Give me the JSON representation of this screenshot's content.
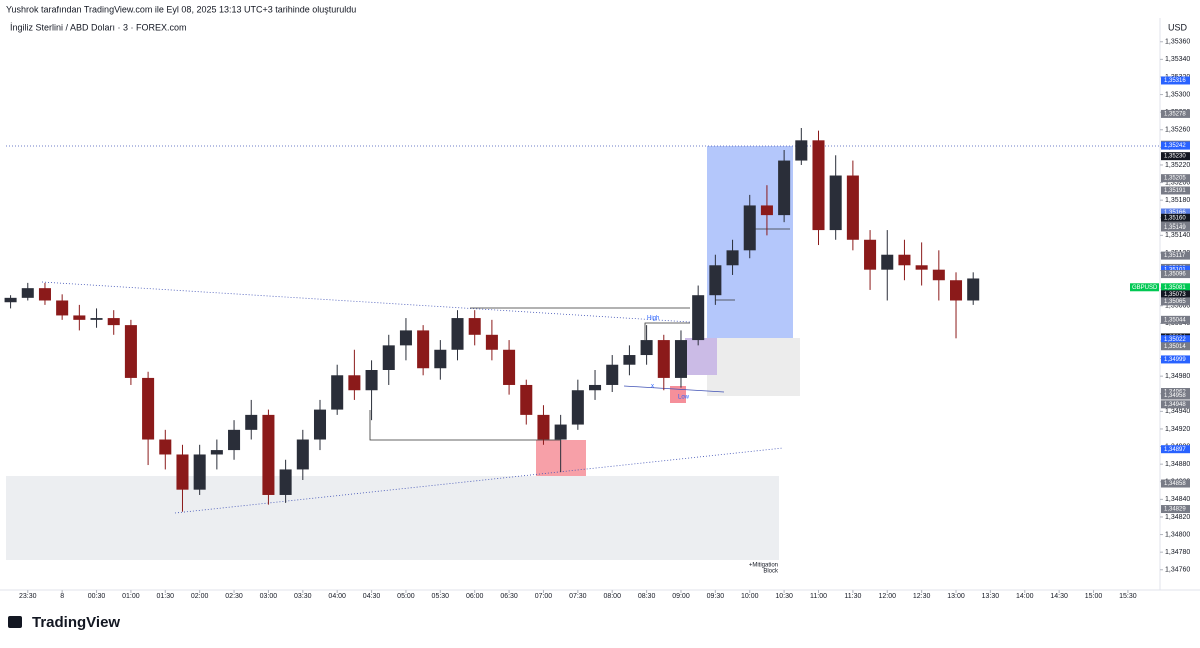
{
  "header": {
    "author_line": "Yushrok tarafından TradingView.com ile Eyl 08, 2025 13:13 UTC+3 tarihinde oluşturuldu",
    "symbol_line": "İngiliz Sterlini / ABD Doları · 3 · FOREX.com"
  },
  "footer": {
    "brand": "TradingView"
  },
  "chart_data": {
    "type": "candlestick",
    "currency": "USD",
    "symbol_tag": "GBPUSD",
    "up_color": "#2a2e39",
    "down_color": "#8b1a1a",
    "x": [
      -45,
      -30,
      -15,
      0,
      15,
      30,
      45,
      60,
      75,
      90,
      105,
      120,
      135,
      150,
      165,
      180,
      195,
      210,
      225,
      240,
      255,
      270,
      285,
      300,
      315,
      330,
      345,
      360,
      375,
      390,
      405,
      420,
      435,
      450,
      465,
      480,
      495,
      510,
      525,
      540,
      555,
      570,
      585,
      600,
      615,
      630,
      645,
      660,
      675,
      690,
      705,
      720,
      735,
      750,
      765,
      780,
      795
    ],
    "open": [
      1.35064,
      1.35069,
      1.3508,
      1.35066,
      1.35049,
      1.35044,
      1.35046,
      1.35038,
      1.34978,
      1.34908,
      1.34891,
      1.34851,
      1.34891,
      1.34896,
      1.34919,
      1.34936,
      1.34845,
      1.34874,
      1.34908,
      1.34942,
      1.34981,
      1.34964,
      1.34987,
      1.35015,
      1.35032,
      1.34989,
      1.3501,
      1.35046,
      1.35027,
      1.3501,
      1.3497,
      1.34936,
      1.34908,
      1.34925,
      1.34964,
      1.3497,
      1.34993,
      1.35004,
      1.35021,
      1.34978,
      1.35021,
      1.35072,
      1.35106,
      1.35123,
      1.35174,
      1.35163,
      1.35225,
      1.35248,
      1.35146,
      1.35208,
      1.35135,
      1.35101,
      1.35118,
      1.35106,
      1.35101,
      1.35089,
      1.35066
    ],
    "high": [
      1.35072,
      1.35086,
      1.35086,
      1.35073,
      1.35061,
      1.35057,
      1.35055,
      1.35044,
      1.34985,
      1.34919,
      1.34902,
      1.34902,
      1.34908,
      1.3493,
      1.34953,
      1.34942,
      1.34885,
      1.34919,
      1.34953,
      1.34993,
      1.3501,
      1.34998,
      1.35027,
      1.35046,
      1.35038,
      1.35021,
      1.35055,
      1.35055,
      1.35044,
      1.35021,
      1.34976,
      1.34947,
      1.34936,
      1.34976,
      1.34987,
      1.35004,
      1.35015,
      1.35038,
      1.35027,
      1.35032,
      1.35083,
      1.35118,
      1.35135,
      1.35186,
      1.35197,
      1.35237,
      1.35262,
      1.35259,
      1.35231,
      1.35225,
      1.35146,
      1.35146,
      1.35135,
      1.35132,
      1.35123,
      1.35098,
      1.35098
    ],
    "low": [
      1.35057,
      1.35066,
      1.35061,
      1.35044,
      1.35032,
      1.35035,
      1.35027,
      1.3497,
      1.34879,
      1.34874,
      1.34826,
      1.34845,
      1.34874,
      1.34885,
      1.34908,
      1.34834,
      1.34836,
      1.34862,
      1.34896,
      1.34936,
      1.34953,
      1.3493,
      1.3497,
      1.34998,
      1.34981,
      1.34976,
      1.34998,
      1.35015,
      1.34998,
      1.34959,
      1.34925,
      1.34902,
      1.34871,
      1.34919,
      1.34953,
      1.34962,
      1.34981,
      1.34993,
      1.34964,
      1.34967,
      1.35015,
      1.35061,
      1.35095,
      1.35114,
      1.3514,
      1.35155,
      1.3522,
      1.35129,
      1.35135,
      1.35123,
      1.35078,
      1.35066,
      1.35089,
      1.35083,
      1.35066,
      1.35023,
      1.35061
    ],
    "close": [
      1.35069,
      1.3508,
      1.35066,
      1.35049,
      1.35044,
      1.35046,
      1.35038,
      1.34978,
      1.34908,
      1.34891,
      1.34851,
      1.34891,
      1.34896,
      1.34919,
      1.34936,
      1.34845,
      1.34874,
      1.34908,
      1.34942,
      1.34981,
      1.34964,
      1.34987,
      1.35015,
      1.35032,
      1.34989,
      1.3501,
      1.35046,
      1.35027,
      1.3501,
      1.3497,
      1.34936,
      1.34908,
      1.34925,
      1.34964,
      1.3497,
      1.34993,
      1.35004,
      1.35021,
      1.34978,
      1.35021,
      1.35072,
      1.35106,
      1.35123,
      1.35174,
      1.35163,
      1.35225,
      1.35248,
      1.35146,
      1.35208,
      1.35135,
      1.35101,
      1.35118,
      1.35106,
      1.35101,
      1.35089,
      1.35066,
      1.35091
    ],
    "xlim": [
      -49,
      958
    ],
    "ylim": [
      1.34737,
      1.35387
    ],
    "xticks": [
      {
        "value": -30,
        "label": "23:30"
      },
      {
        "value": 0,
        "label": "8"
      },
      {
        "value": 30,
        "label": "00:30"
      },
      {
        "value": 60,
        "label": "01:00"
      },
      {
        "value": 90,
        "label": "01:30"
      },
      {
        "value": 120,
        "label": "02:00"
      },
      {
        "value": 150,
        "label": "02:30"
      },
      {
        "value": 180,
        "label": "03:00"
      },
      {
        "value": 210,
        "label": "03:30"
      },
      {
        "value": 240,
        "label": "04:00"
      },
      {
        "value": 270,
        "label": "04:30"
      },
      {
        "value": 300,
        "label": "05:00"
      },
      {
        "value": 330,
        "label": "05:30"
      },
      {
        "value": 360,
        "label": "06:00"
      },
      {
        "value": 390,
        "label": "06:30"
      },
      {
        "value": 420,
        "label": "07:00"
      },
      {
        "value": 450,
        "label": "07:30"
      },
      {
        "value": 480,
        "label": "08:00"
      },
      {
        "value": 510,
        "label": "08:30"
      },
      {
        "value": 540,
        "label": "09:00"
      },
      {
        "value": 570,
        "label": "09:30"
      },
      {
        "value": 600,
        "label": "10:00"
      },
      {
        "value": 630,
        "label": "10:30"
      },
      {
        "value": 660,
        "label": "11:00"
      },
      {
        "value": 690,
        "label": "11:30"
      },
      {
        "value": 720,
        "label": "12:00"
      },
      {
        "value": 750,
        "label": "12:30"
      },
      {
        "value": 780,
        "label": "13:00"
      },
      {
        "value": 810,
        "label": "13:30"
      },
      {
        "value": 840,
        "label": "14:00"
      },
      {
        "value": 870,
        "label": "14:30"
      },
      {
        "value": 900,
        "label": "15:00"
      },
      {
        "value": 930,
        "label": "15:30"
      }
    ],
    "yticks": [
      {
        "value": 1.3476,
        "label": "1,34760"
      },
      {
        "value": 1.3478,
        "label": "1,34780"
      },
      {
        "value": 1.348,
        "label": "1,34800"
      },
      {
        "value": 1.3482,
        "label": "1,34820"
      },
      {
        "value": 1.3484,
        "label": "1,34840"
      },
      {
        "value": 1.3486,
        "label": "1,34860"
      },
      {
        "value": 1.3488,
        "label": "1,34880"
      },
      {
        "value": 1.349,
        "label": "1,34900"
      },
      {
        "value": 1.3492,
        "label": "1,34920"
      },
      {
        "value": 1.3494,
        "label": "1,34940"
      },
      {
        "value": 1.3496,
        "label": "1,34960"
      },
      {
        "value": 1.3498,
        "label": "1,34980"
      },
      {
        "value": 1.35,
        "label": "1,35000"
      },
      {
        "value": 1.3502,
        "label": "1,35020"
      },
      {
        "value": 1.3504,
        "label": "1,35040"
      },
      {
        "value": 1.3506,
        "label": "1,35060"
      },
      {
        "value": 1.3508,
        "label": "1,35080"
      },
      {
        "value": 1.351,
        "label": "1,35100"
      },
      {
        "value": 1.3512,
        "label": "1,35120"
      },
      {
        "value": 1.3514,
        "label": "1,35140"
      },
      {
        "value": 1.3516,
        "label": "1,35160"
      },
      {
        "value": 1.3518,
        "label": "1,35180"
      },
      {
        "value": 1.352,
        "label": "1,35200"
      },
      {
        "value": 1.3522,
        "label": "1,35220"
      },
      {
        "value": 1.3524,
        "label": "1,35240"
      },
      {
        "value": 1.3526,
        "label": "1,35260"
      },
      {
        "value": 1.3528,
        "label": "1,35280"
      },
      {
        "value": 1.353,
        "label": "1,35300"
      },
      {
        "value": 1.3532,
        "label": "1,35320"
      },
      {
        "value": 1.3534,
        "label": "1,35340"
      },
      {
        "value": 1.3536,
        "label": "1,35360"
      }
    ],
    "price_labels": [
      {
        "value": 1.35316,
        "label": "1,35316",
        "color": "#2962ff"
      },
      {
        "value": 1.35278,
        "label": "1,35278",
        "color": "#787b86"
      },
      {
        "value": 1.35243,
        "label": "1,35243",
        "color": "#787b86"
      },
      {
        "value": 1.35242,
        "label": "1,35242",
        "color": "#2962ff"
      },
      {
        "value": 1.3523,
        "label": "1,35230",
        "color": "#131722"
      },
      {
        "value": 1.35205,
        "label": "1,35205",
        "color": "#787b86"
      },
      {
        "value": 1.35191,
        "label": "1,35191",
        "color": "#787b86"
      },
      {
        "value": 1.35166,
        "label": "1,35166",
        "color": "#5b7fe8"
      },
      {
        "value": 1.3516,
        "label": "1,35160",
        "color": "#131722"
      },
      {
        "value": 1.35151,
        "label": "1,35151",
        "color": "#787b86"
      },
      {
        "value": 1.35149,
        "label": "1,35149",
        "color": "#787b86"
      },
      {
        "value": 1.35117,
        "label": "1,35117",
        "color": "#787b86"
      },
      {
        "value": 1.35103,
        "label": "1,35103",
        "color": "#787b86"
      },
      {
        "value": 1.35101,
        "label": "1,35101",
        "color": "#2962ff"
      },
      {
        "value": 1.35096,
        "label": "1,35096",
        "color": "#787b86"
      },
      {
        "value": 1.35081,
        "label": "1,35081",
        "color": "#00c853"
      },
      {
        "value": 1.35073,
        "label": "1,35073",
        "color": "#131722"
      },
      {
        "value": 1.35065,
        "label": "1,35065",
        "color": "#787b86"
      },
      {
        "value": 1.35044,
        "label": "1,35044",
        "color": "#787b86"
      },
      {
        "value": 1.35024,
        "label": "1,35024",
        "color": "#131722"
      },
      {
        "value": 1.35022,
        "label": "1,35022",
        "color": "#2962ff"
      },
      {
        "value": 1.35014,
        "label": "1,35014",
        "color": "#787b86"
      },
      {
        "value": 1.34999,
        "label": "1,34999",
        "color": "#2962ff"
      },
      {
        "value": 1.34962,
        "label": "1,34962",
        "color": "#787b86"
      },
      {
        "value": 1.34958,
        "label": "1,34958",
        "color": "#787b86"
      },
      {
        "value": 1.34948,
        "label": "1,34948",
        "color": "#787b86"
      },
      {
        "value": 1.34897,
        "label": "1,34897",
        "color": "#2962ff"
      },
      {
        "value": 1.34858,
        "label": "1,34858",
        "color": "#787b86"
      },
      {
        "value": 1.34829,
        "label": "1,34829",
        "color": "#787b86"
      }
    ],
    "annotations": [
      "High",
      "Low",
      "x",
      "+Mitigation",
      "Block"
    ]
  }
}
